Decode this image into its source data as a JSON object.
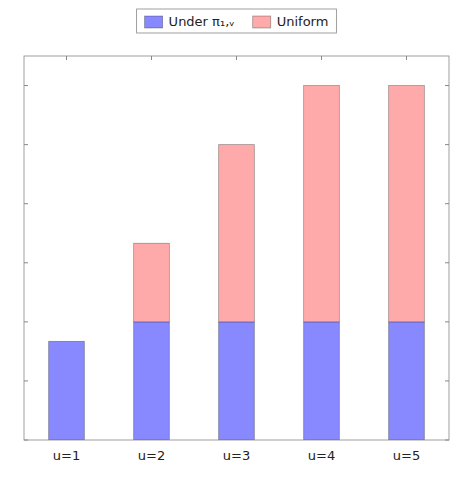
{
  "chart_data": {
    "type": "bar",
    "stacked": true,
    "categories": [
      "u=1",
      "u=2",
      "u=3",
      "u=4",
      "u=5"
    ],
    "series": [
      {
        "name": "Under π₁,ᵥ",
        "color": "#8888ff",
        "values": [
          0.167,
          0.2,
          0.2,
          0.2,
          0.2
        ]
      },
      {
        "name": "Uniform",
        "color": "#ffaaaa",
        "values": [
          0.0,
          0.133,
          0.3,
          0.4,
          0.4
        ]
      }
    ],
    "ylim": [
      0,
      0.65
    ],
    "yticks": [
      0.0,
      0.1,
      0.2,
      0.3,
      0.4,
      0.5,
      0.6
    ],
    "tick_labels": "x",
    "grid": false,
    "legend": "top"
  }
}
